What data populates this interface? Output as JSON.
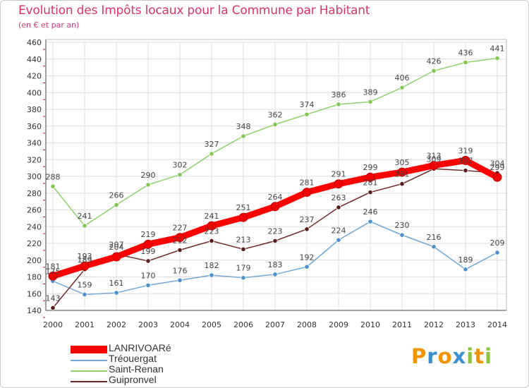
{
  "header": {
    "title": "Evolution des Impôts locaux pour la Commune par Habitant",
    "subtitle": "(en € et par an)"
  },
  "logo": {
    "letters": [
      "P",
      "r",
      "o",
      "x",
      "i",
      "t",
      "i"
    ],
    "colors": [
      "#f29400",
      "#3c8fce",
      "#f29400",
      "#3c8fce",
      "#8bc53f",
      "#f29400",
      "#8bc53f"
    ]
  },
  "colors": {
    "axis_text": "#333333",
    "grid": "#dddddd",
    "tick_red": "#e0003c"
  },
  "chart_data": {
    "type": "line",
    "x": [
      2000,
      2001,
      2002,
      2003,
      2004,
      2005,
      2006,
      2007,
      2008,
      2009,
      2010,
      2011,
      2012,
      2013,
      2014
    ],
    "ylim": [
      140,
      460
    ],
    "yticks": [
      140,
      160,
      180,
      200,
      220,
      240,
      260,
      280,
      300,
      320,
      340,
      360,
      380,
      400,
      420,
      440,
      460
    ],
    "grid": true,
    "legend_position": "bottom-left",
    "series": [
      {
        "name": "Saint-Renan",
        "color": "#8fd16a",
        "marker": "#7ec850",
        "width": 1.5,
        "values": [
          288,
          241,
          266,
          290,
          302,
          327,
          348,
          362,
          374,
          386,
          389,
          406,
          426,
          436,
          441
        ],
        "labels": [
          "288",
          "241",
          "266",
          "290",
          "302",
          "327",
          "348",
          "362",
          "374",
          "386",
          "389",
          "406",
          "426",
          "436",
          "441"
        ]
      },
      {
        "name": "Tréouergat",
        "color": "#6fa7d6",
        "marker": "#4a90cf",
        "width": 1.5,
        "values": [
          175,
          159,
          161,
          170,
          176,
          182,
          179,
          183,
          192,
          224,
          246,
          230,
          216,
          189,
          209
        ],
        "labels": [
          "175",
          "159",
          "161",
          "170",
          "176",
          "182",
          "179",
          "183",
          "192",
          "224",
          "246",
          "230",
          "216",
          "189",
          "209"
        ]
      },
      {
        "name": "Guipronvel",
        "color": "#6b2424",
        "marker": "#5a1a1a",
        "width": 1.5,
        "values": [
          143,
          189,
          207,
          199,
          212,
          223,
          213,
          223,
          237,
          263,
          281,
          291,
          309,
          307,
          304
        ],
        "labels": [
          "143",
          "189",
          "207",
          "199",
          "212",
          "223",
          "213",
          "223",
          "237",
          "263",
          "281",
          "291",
          "309",
          "307",
          "304"
        ]
      },
      {
        "name": "LANRIVOARé",
        "color": "#ff0000",
        "marker": "#f00000",
        "width": 9,
        "values": [
          181,
          193,
          204,
          219,
          227,
          241,
          251,
          264,
          281,
          291,
          299,
          305,
          313,
          319,
          299
        ],
        "labels": [
          "181",
          "193",
          "204",
          "219",
          "227",
          "241",
          "251",
          "264",
          "281",
          "291",
          "299",
          "305",
          "313",
          "319",
          "299"
        ]
      }
    ]
  },
  "legend": [
    {
      "name": "LANRIVOARé",
      "color": "#ff0000",
      "thick": true
    },
    {
      "name": "Tréouergat",
      "color": "#6fa7d6",
      "thick": false
    },
    {
      "name": "Saint-Renan",
      "color": "#8fd16a",
      "thick": false
    },
    {
      "name": "Guipronvel",
      "color": "#6b2424",
      "thick": false
    }
  ]
}
